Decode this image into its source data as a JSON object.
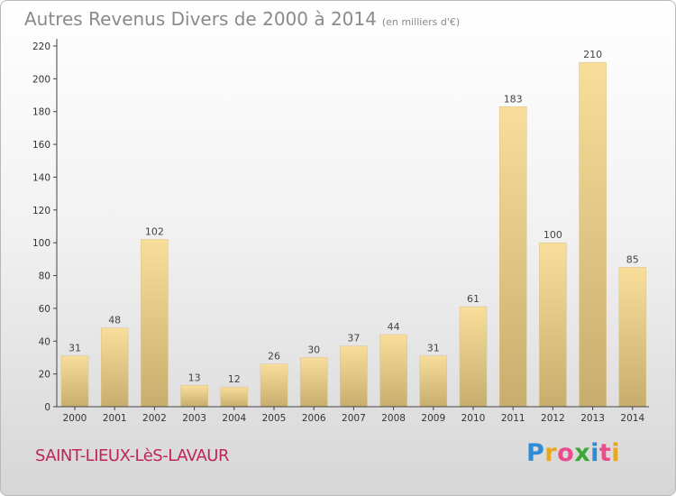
{
  "header": {
    "title": "Autres Revenus Divers de 2000 à 2014",
    "unit": "(en milliers d'€)"
  },
  "footer": {
    "commune": "SAINT-LIEUX-LèS-LAVAUR",
    "logo_letters": [
      "P",
      "r",
      "o",
      "x",
      "i",
      "t",
      "i"
    ],
    "logo_colors": [
      "#2e8bd6",
      "#e8a81c",
      "#e94d8b",
      "#3aa73a",
      "#2e8bd6",
      "#e94d8b",
      "#e8a81c"
    ]
  },
  "chart_data": {
    "type": "bar",
    "categories": [
      "2000",
      "2001",
      "2002",
      "2003",
      "2004",
      "2005",
      "2006",
      "2007",
      "2008",
      "2009",
      "2010",
      "2011",
      "2012",
      "2013",
      "2014"
    ],
    "values": [
      31,
      48,
      102,
      13,
      12,
      26,
      30,
      37,
      44,
      31,
      61,
      183,
      100,
      210,
      85
    ],
    "ylim": [
      0,
      220
    ],
    "yticks": [
      0,
      20,
      40,
      60,
      80,
      100,
      120,
      140,
      160,
      180,
      200,
      220
    ],
    "grid": false,
    "legend": "none",
    "colors": {
      "bar_top": "#f8de9a",
      "bar_bottom": "#c8ae6e",
      "axis": "#444444"
    }
  }
}
